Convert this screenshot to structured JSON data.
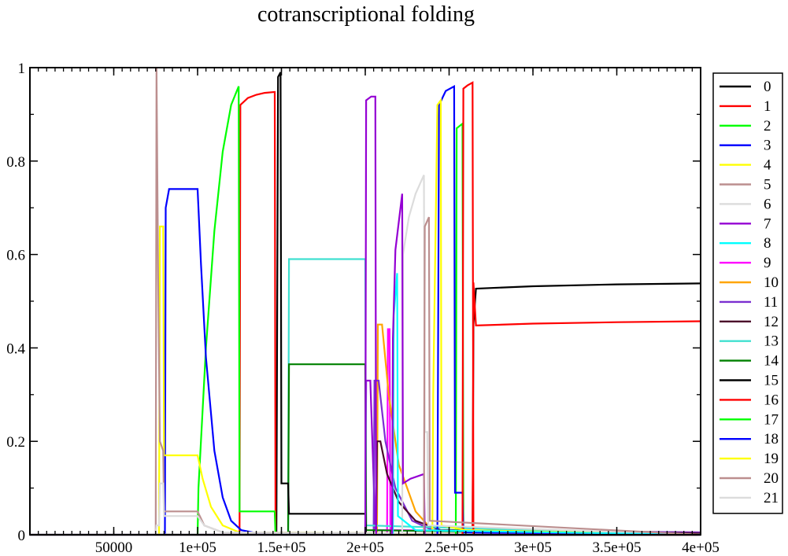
{
  "chart_data": {
    "type": "line",
    "title": "cotranscriptional folding",
    "xlabel": "",
    "ylabel": "",
    "xlim": [
      0,
      400000
    ],
    "ylim": [
      0,
      1
    ],
    "grid": false,
    "legend_position": "right",
    "x_ticks": [
      {
        "value": 50000,
        "label": "50000"
      },
      {
        "value": 100000,
        "label": "1e+05"
      },
      {
        "value": 150000,
        "label": "1.5e+05"
      },
      {
        "value": 200000,
        "label": "2e+05"
      },
      {
        "value": 250000,
        "label": "2.5e+05"
      },
      {
        "value": 300000,
        "label": "3e+05"
      },
      {
        "value": 350000,
        "label": "3.5e+05"
      },
      {
        "value": 400000,
        "label": "4e+05"
      }
    ],
    "y_ticks": [
      {
        "value": 0,
        "label": "0"
      },
      {
        "value": 0.2,
        "label": "0.2"
      },
      {
        "value": 0.4,
        "label": "0.4"
      },
      {
        "value": 0.6,
        "label": "0.6"
      },
      {
        "value": 0.8,
        "label": "0.8"
      },
      {
        "value": 1,
        "label": "1"
      }
    ],
    "series": [
      {
        "name": "0",
        "color": "#000000",
        "points": [
          [
            0,
            0
          ],
          [
            264000,
            0
          ],
          [
            264500,
            0.45
          ],
          [
            266000,
            0.527
          ],
          [
            300000,
            0.532
          ],
          [
            350000,
            0.536
          ],
          [
            400000,
            0.538
          ]
        ]
      },
      {
        "name": "1",
        "color": "#ff0000",
        "points": [
          [
            0,
            0
          ],
          [
            264000,
            0
          ],
          [
            264500,
            0.54
          ],
          [
            266000,
            0.448
          ],
          [
            300000,
            0.452
          ],
          [
            350000,
            0.455
          ],
          [
            400000,
            0.457
          ]
        ]
      },
      {
        "name": "2",
        "color": "#00ff00",
        "points": [
          [
            0,
            0
          ],
          [
            400000,
            0
          ]
        ]
      },
      {
        "name": "3",
        "color": "#0000ff",
        "points": [
          [
            0,
            0
          ],
          [
            400000,
            0
          ]
        ]
      },
      {
        "name": "4",
        "color": "#ffff00",
        "points": [
          [
            0,
            0
          ],
          [
            400000,
            0
          ]
        ]
      },
      {
        "name": "5",
        "color": "#bc8f8f",
        "points": [
          [
            0,
            0
          ],
          [
            400000,
            0
          ]
        ]
      },
      {
        "name": "6",
        "color": "#dcdcdc",
        "points": [
          [
            0,
            0
          ],
          [
            400000,
            0
          ]
        ]
      },
      {
        "name": "7",
        "color": "#9400d3",
        "points": [
          [
            0,
            0
          ],
          [
            200000,
            0
          ],
          [
            200500,
            0.33
          ],
          [
            203000,
            0.33
          ],
          [
            206000,
            0.01
          ],
          [
            400000,
            0.005
          ]
        ]
      },
      {
        "name": "8",
        "color": "#00ffff",
        "points": [
          [
            0,
            0
          ],
          [
            400000,
            0
          ]
        ]
      },
      {
        "name": "9",
        "color": "#ff00ff",
        "points": [
          [
            0,
            0
          ],
          [
            213000,
            0
          ],
          [
            213500,
            0.44
          ],
          [
            214500,
            0.44
          ],
          [
            215000,
            0.01
          ],
          [
            400000,
            0.0
          ]
        ]
      },
      {
        "name": "10",
        "color": "#ffa500",
        "points": [
          [
            0,
            0
          ],
          [
            207000,
            0
          ],
          [
            207500,
            0.45
          ],
          [
            210000,
            0.45
          ],
          [
            214000,
            0.3
          ],
          [
            220000,
            0.15
          ],
          [
            230000,
            0.05
          ],
          [
            240000,
            0.01
          ],
          [
            400000,
            0.005
          ]
        ]
      },
      {
        "name": "11",
        "color": "#7b2fd0",
        "points": [
          [
            0,
            0
          ],
          [
            205000,
            0
          ],
          [
            205500,
            0.33
          ],
          [
            208000,
            0.33
          ],
          [
            212000,
            0.2
          ],
          [
            218000,
            0.1
          ],
          [
            228000,
            0.03
          ],
          [
            240000,
            0.01
          ],
          [
            400000,
            0.005
          ]
        ]
      },
      {
        "name": "12",
        "color": "#4b0a2a",
        "points": [
          [
            0,
            0
          ],
          [
            206500,
            0
          ],
          [
            207000,
            0.2
          ],
          [
            209000,
            0.2
          ],
          [
            213000,
            0.13
          ],
          [
            220000,
            0.07
          ],
          [
            230000,
            0.03
          ],
          [
            245000,
            0.01
          ],
          [
            400000,
            0.003
          ]
        ]
      },
      {
        "name": "13",
        "color": "#40e0d0",
        "points": [
          [
            0,
            0
          ],
          [
            154000,
            0
          ],
          [
            154500,
            0.59
          ],
          [
            200000,
            0.59
          ],
          [
            200500,
            0.02
          ],
          [
            400000,
            0.0
          ]
        ]
      },
      {
        "name": "14",
        "color": "#008000",
        "points": [
          [
            0,
            0
          ],
          [
            154000,
            0
          ],
          [
            154500,
            0.365
          ],
          [
            200000,
            0.365
          ],
          [
            200500,
            0.01
          ],
          [
            400000,
            0.0
          ]
        ]
      },
      {
        "name": "15",
        "color": "#000000",
        "points": [
          [
            0,
            0
          ],
          [
            147000,
            0
          ],
          [
            148000,
            0.98
          ],
          [
            149500,
            0.99
          ],
          [
            150000,
            0.11
          ],
          [
            154000,
            0.11
          ],
          [
            154500,
            0.045
          ],
          [
            200000,
            0.045
          ],
          [
            200500,
            0.0
          ],
          [
            400000,
            0.0
          ]
        ]
      },
      {
        "name": "16",
        "color": "#ff0000",
        "points": [
          [
            0,
            0
          ],
          [
            125000,
            0
          ],
          [
            125500,
            0.92
          ],
          [
            130000,
            0.935
          ],
          [
            135000,
            0.942
          ],
          [
            140000,
            0.946
          ],
          [
            146000,
            0.948
          ],
          [
            146500,
            0.0
          ],
          [
            400000,
            0.0
          ]
        ]
      },
      {
        "name": "17",
        "color": "#00ff00",
        "points": [
          [
            0,
            0
          ],
          [
            100000,
            0
          ],
          [
            100500,
            0.1
          ],
          [
            105000,
            0.4
          ],
          [
            110000,
            0.65
          ],
          [
            115000,
            0.82
          ],
          [
            120000,
            0.92
          ],
          [
            124500,
            0.96
          ],
          [
            125000,
            0.05
          ],
          [
            146000,
            0.05
          ],
          [
            146500,
            0.0
          ],
          [
            400000,
            0.0
          ]
        ]
      },
      {
        "name": "18",
        "color": "#0000ff",
        "points": [
          [
            0,
            0
          ],
          [
            80500,
            0
          ],
          [
            81000,
            0.7
          ],
          [
            83000,
            0.74
          ],
          [
            100000,
            0.74
          ],
          [
            102000,
            0.58
          ],
          [
            105000,
            0.38
          ],
          [
            110000,
            0.18
          ],
          [
            115000,
            0.08
          ],
          [
            120000,
            0.03
          ],
          [
            126000,
            0.01
          ],
          [
            140000,
            0.0
          ],
          [
            400000,
            0.0
          ]
        ]
      },
      {
        "name": "19",
        "color": "#ffff00",
        "points": [
          [
            0,
            0
          ],
          [
            77000,
            0
          ],
          [
            77500,
            0.66
          ],
          [
            79500,
            0.66
          ],
          [
            80000,
            0.17
          ],
          [
            100000,
            0.17
          ],
          [
            103000,
            0.12
          ],
          [
            108000,
            0.06
          ],
          [
            115000,
            0.02
          ],
          [
            125000,
            0.005
          ],
          [
            400000,
            0.0
          ]
        ]
      },
      {
        "name": "20",
        "color": "#bc8f8f",
        "points": [
          [
            0,
            0
          ],
          [
            75000,
            0
          ],
          [
            75500,
            1.0
          ],
          [
            76500,
            0.55
          ],
          [
            77500,
            0.2
          ],
          [
            79500,
            0.18
          ],
          [
            80000,
            0.05
          ],
          [
            100000,
            0.05
          ],
          [
            104000,
            0.02
          ],
          [
            115000,
            0.005
          ],
          [
            400000,
            0.0
          ]
        ]
      },
      {
        "name": "21",
        "color": "#dcdcdc",
        "points": [
          [
            0,
            0
          ],
          [
            75000,
            0
          ],
          [
            75500,
            0.02
          ],
          [
            77000,
            0.02
          ],
          [
            77500,
            0.11
          ],
          [
            79500,
            0.11
          ],
          [
            80000,
            0.04
          ],
          [
            100000,
            0.04
          ],
          [
            104000,
            0.02
          ],
          [
            115000,
            0.005
          ],
          [
            400000,
            0.0
          ]
        ]
      },
      {
        "name": "",
        "color": "#00ff00",
        "points": [
          [
            0,
            0
          ],
          [
            254000,
            0
          ],
          [
            254500,
            0.87
          ],
          [
            258000,
            0.88
          ],
          [
            258500,
            0.0
          ],
          [
            400000,
            0.0
          ]
        ]
      },
      {
        "name": "",
        "color": "#0000ff",
        "points": [
          [
            0,
            0
          ],
          [
            243000,
            0
          ],
          [
            244000,
            0.92
          ],
          [
            248000,
            0.95
          ],
          [
            253000,
            0.96
          ],
          [
            253500,
            0.09
          ],
          [
            258000,
            0.09
          ],
          [
            258500,
            0.005
          ],
          [
            400000,
            0.0
          ]
        ]
      },
      {
        "name": "",
        "color": "#ff0000",
        "points": [
          [
            0,
            0
          ],
          [
            258000,
            0
          ],
          [
            258500,
            0.955
          ],
          [
            261000,
            0.962
          ],
          [
            264000,
            0.968
          ],
          [
            264500,
            0.0
          ],
          [
            400000,
            0.0
          ]
        ]
      },
      {
        "name": "",
        "color": "#ffff00",
        "points": [
          [
            0,
            0
          ],
          [
            240000,
            0
          ],
          [
            240500,
            0.3
          ],
          [
            243000,
            0.92
          ],
          [
            245000,
            0.93
          ],
          [
            245500,
            0.02
          ],
          [
            260000,
            0.01
          ],
          [
            400000,
            0.0
          ]
        ]
      },
      {
        "name": "",
        "color": "#dcdcdc",
        "points": [
          [
            0,
            0
          ],
          [
            222000,
            0
          ],
          [
            222500,
            0.6
          ],
          [
            226000,
            0.68
          ],
          [
            230000,
            0.73
          ],
          [
            235000,
            0.77
          ],
          [
            235500,
            0.22
          ],
          [
            237000,
            0.22
          ],
          [
            237500,
            0.02
          ],
          [
            400000,
            0.0
          ]
        ]
      },
      {
        "name": "",
        "color": "#00ffff",
        "points": [
          [
            0,
            0
          ],
          [
            216500,
            0
          ],
          [
            217000,
            0.47
          ],
          [
            219000,
            0.56
          ],
          [
            219500,
            0.04
          ],
          [
            230000,
            0.01
          ],
          [
            400000,
            0.0
          ]
        ]
      },
      {
        "name": "",
        "color": "#9400d3",
        "points": [
          [
            0,
            0
          ],
          [
            200000,
            0
          ],
          [
            200500,
            0.93
          ],
          [
            203500,
            0.938
          ],
          [
            206000,
            0.938
          ],
          [
            206500,
            0.0
          ],
          [
            216000,
            0
          ],
          [
            216500,
            0.42
          ],
          [
            218000,
            0.61
          ],
          [
            222000,
            0.73
          ],
          [
            222500,
            0.11
          ],
          [
            227000,
            0.12
          ],
          [
            235000,
            0.13
          ],
          [
            235500,
            0.0
          ],
          [
            400000,
            0.0
          ]
        ]
      },
      {
        "name": "",
        "color": "#bc8f8f",
        "points": [
          [
            0,
            0
          ],
          [
            235000,
            0
          ],
          [
            235500,
            0.66
          ],
          [
            238000,
            0.68
          ],
          [
            238500,
            0.03
          ],
          [
            400000,
            0.0
          ]
        ]
      }
    ]
  }
}
